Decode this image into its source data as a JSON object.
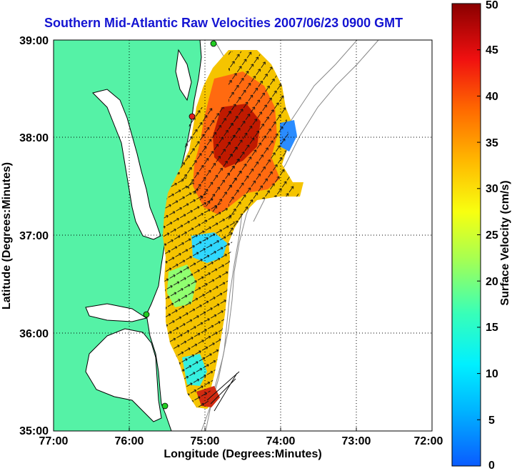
{
  "title": "Southern Mid-Atlantic Raw Velocities 2007/06/23 0900 GMT",
  "x_axis": {
    "label": "Longitude (Degrees:Minutes)",
    "ticks": [
      "77:00",
      "76:00",
      "75:00",
      "74:00",
      "73:00",
      "72:00"
    ]
  },
  "y_axis": {
    "label": "Latitude (Degrees:Minutes)",
    "ticks": [
      "39:00",
      "38:00",
      "37:00",
      "36:00",
      "35:00"
    ]
  },
  "colorbar": {
    "label": "Surface Velocity (cm/s)",
    "ticks": [
      "50",
      "45",
      "40",
      "35",
      "30",
      "25",
      "20",
      "15",
      "10",
      "5",
      "0"
    ],
    "min": 0,
    "max": 50
  },
  "colors": {
    "title": "#1414d2",
    "land": "#55f2a6",
    "station": "#22cc22",
    "station_active": "#e02020"
  },
  "map": {
    "lon_range": [
      "77:00",
      "72:00"
    ],
    "lat_range": [
      "35:00",
      "39:00"
    ],
    "grid": true
  }
}
